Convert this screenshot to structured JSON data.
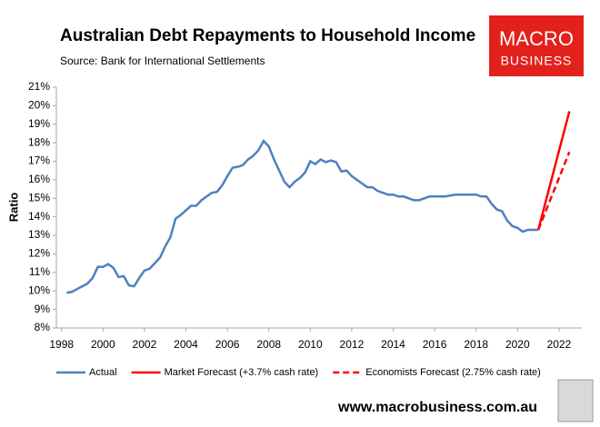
{
  "chart_data": {
    "type": "line",
    "title": "Australian Debt Repayments to Household Income",
    "subtitle": "Source: Bank for International Settlements",
    "y_label": "Ratio",
    "logo": [
      "MACRO",
      "BUSINESS"
    ],
    "footer": "www.macrobusiness.com.au",
    "xlim": [
      1997.75,
      2023.1
    ],
    "xticks": [
      1998,
      2000,
      2002,
      2004,
      2006,
      2008,
      2010,
      2012,
      2014,
      2016,
      2018,
      2020,
      2022
    ],
    "ylim": [
      8,
      21
    ],
    "yticks": [
      {
        "value": 8,
        "label": "8%"
      },
      {
        "value": 9,
        "label": "9%"
      },
      {
        "value": 10,
        "label": "10%"
      },
      {
        "value": 11,
        "label": "11%"
      },
      {
        "value": 12,
        "label": "12%"
      },
      {
        "value": 13,
        "label": "13%"
      },
      {
        "value": 14,
        "label": "14%"
      },
      {
        "value": 15,
        "label": "15%"
      },
      {
        "value": 16,
        "label": "16%"
      },
      {
        "value": 17,
        "label": "17%"
      },
      {
        "value": 18,
        "label": "18%"
      },
      {
        "value": 19,
        "label": "19%"
      },
      {
        "value": 20,
        "label": "20%"
      },
      {
        "value": 21,
        "label": "21%"
      }
    ],
    "grid": false,
    "legend": "bottom",
    "series": [
      {
        "name": "Actual",
        "color": "#4f81bd",
        "style": "solid",
        "x": [
          1998.25,
          1998.5,
          1998.75,
          1999.0,
          1999.25,
          1999.5,
          1999.75,
          2000.0,
          2000.25,
          2000.5,
          2000.75,
          2001.0,
          2001.25,
          2001.5,
          2001.75,
          2002.0,
          2002.25,
          2002.5,
          2002.75,
          2003.0,
          2003.25,
          2003.5,
          2003.75,
          2004.0,
          2004.25,
          2004.5,
          2004.75,
          2005.0,
          2005.25,
          2005.5,
          2005.75,
          2006.0,
          2006.25,
          2006.5,
          2006.75,
          2007.0,
          2007.25,
          2007.5,
          2007.75,
          2008.0,
          2008.25,
          2008.5,
          2008.75,
          2009.0,
          2009.25,
          2009.5,
          2009.75,
          2010.0,
          2010.25,
          2010.5,
          2010.75,
          2011.0,
          2011.25,
          2011.5,
          2011.75,
          2012.0,
          2012.25,
          2012.5,
          2012.75,
          2013.0,
          2013.25,
          2013.5,
          2013.75,
          2014.0,
          2014.25,
          2014.5,
          2014.75,
          2015.0,
          2015.25,
          2015.5,
          2015.75,
          2016.0,
          2016.5,
          2017.0,
          2017.5,
          2018.0,
          2018.25,
          2018.5,
          2018.75,
          2019.0,
          2019.25,
          2019.5,
          2019.75,
          2020.0,
          2020.25,
          2020.5,
          2020.75,
          2021.0
        ],
        "values": [
          9.9,
          9.95,
          10.1,
          10.25,
          10.4,
          10.7,
          11.3,
          11.3,
          11.45,
          11.25,
          10.75,
          10.8,
          10.3,
          10.25,
          10.7,
          11.1,
          11.2,
          11.5,
          11.8,
          12.4,
          12.9,
          13.9,
          14.1,
          14.35,
          14.6,
          14.6,
          14.9,
          15.1,
          15.3,
          15.35,
          15.7,
          16.2,
          16.65,
          16.7,
          16.8,
          17.1,
          17.3,
          17.6,
          18.1,
          17.8,
          17.1,
          16.5,
          15.9,
          15.6,
          15.9,
          16.1,
          16.4,
          17.0,
          16.85,
          17.1,
          16.95,
          17.05,
          16.95,
          16.45,
          16.5,
          16.2,
          16.0,
          15.8,
          15.6,
          15.6,
          15.4,
          15.3,
          15.2,
          15.2,
          15.1,
          15.1,
          15.0,
          14.9,
          14.9,
          15.0,
          15.1,
          15.1,
          15.1,
          15.2,
          15.2,
          15.2,
          15.1,
          15.1,
          14.7,
          14.4,
          14.3,
          13.8,
          13.5,
          13.4,
          13.2,
          13.3,
          13.3,
          13.3
        ]
      },
      {
        "name": "Market Forecast (+3.7% cash rate)",
        "color": "#ff0000",
        "style": "solid",
        "x": [
          2021.0,
          2022.5
        ],
        "values": [
          13.3,
          19.7
        ]
      },
      {
        "name": "Economists Forecast (2.75% cash rate)",
        "color": "#ff0000",
        "style": "dashed",
        "x": [
          2021.0,
          2022.5
        ],
        "values": [
          13.3,
          17.5
        ]
      }
    ]
  }
}
